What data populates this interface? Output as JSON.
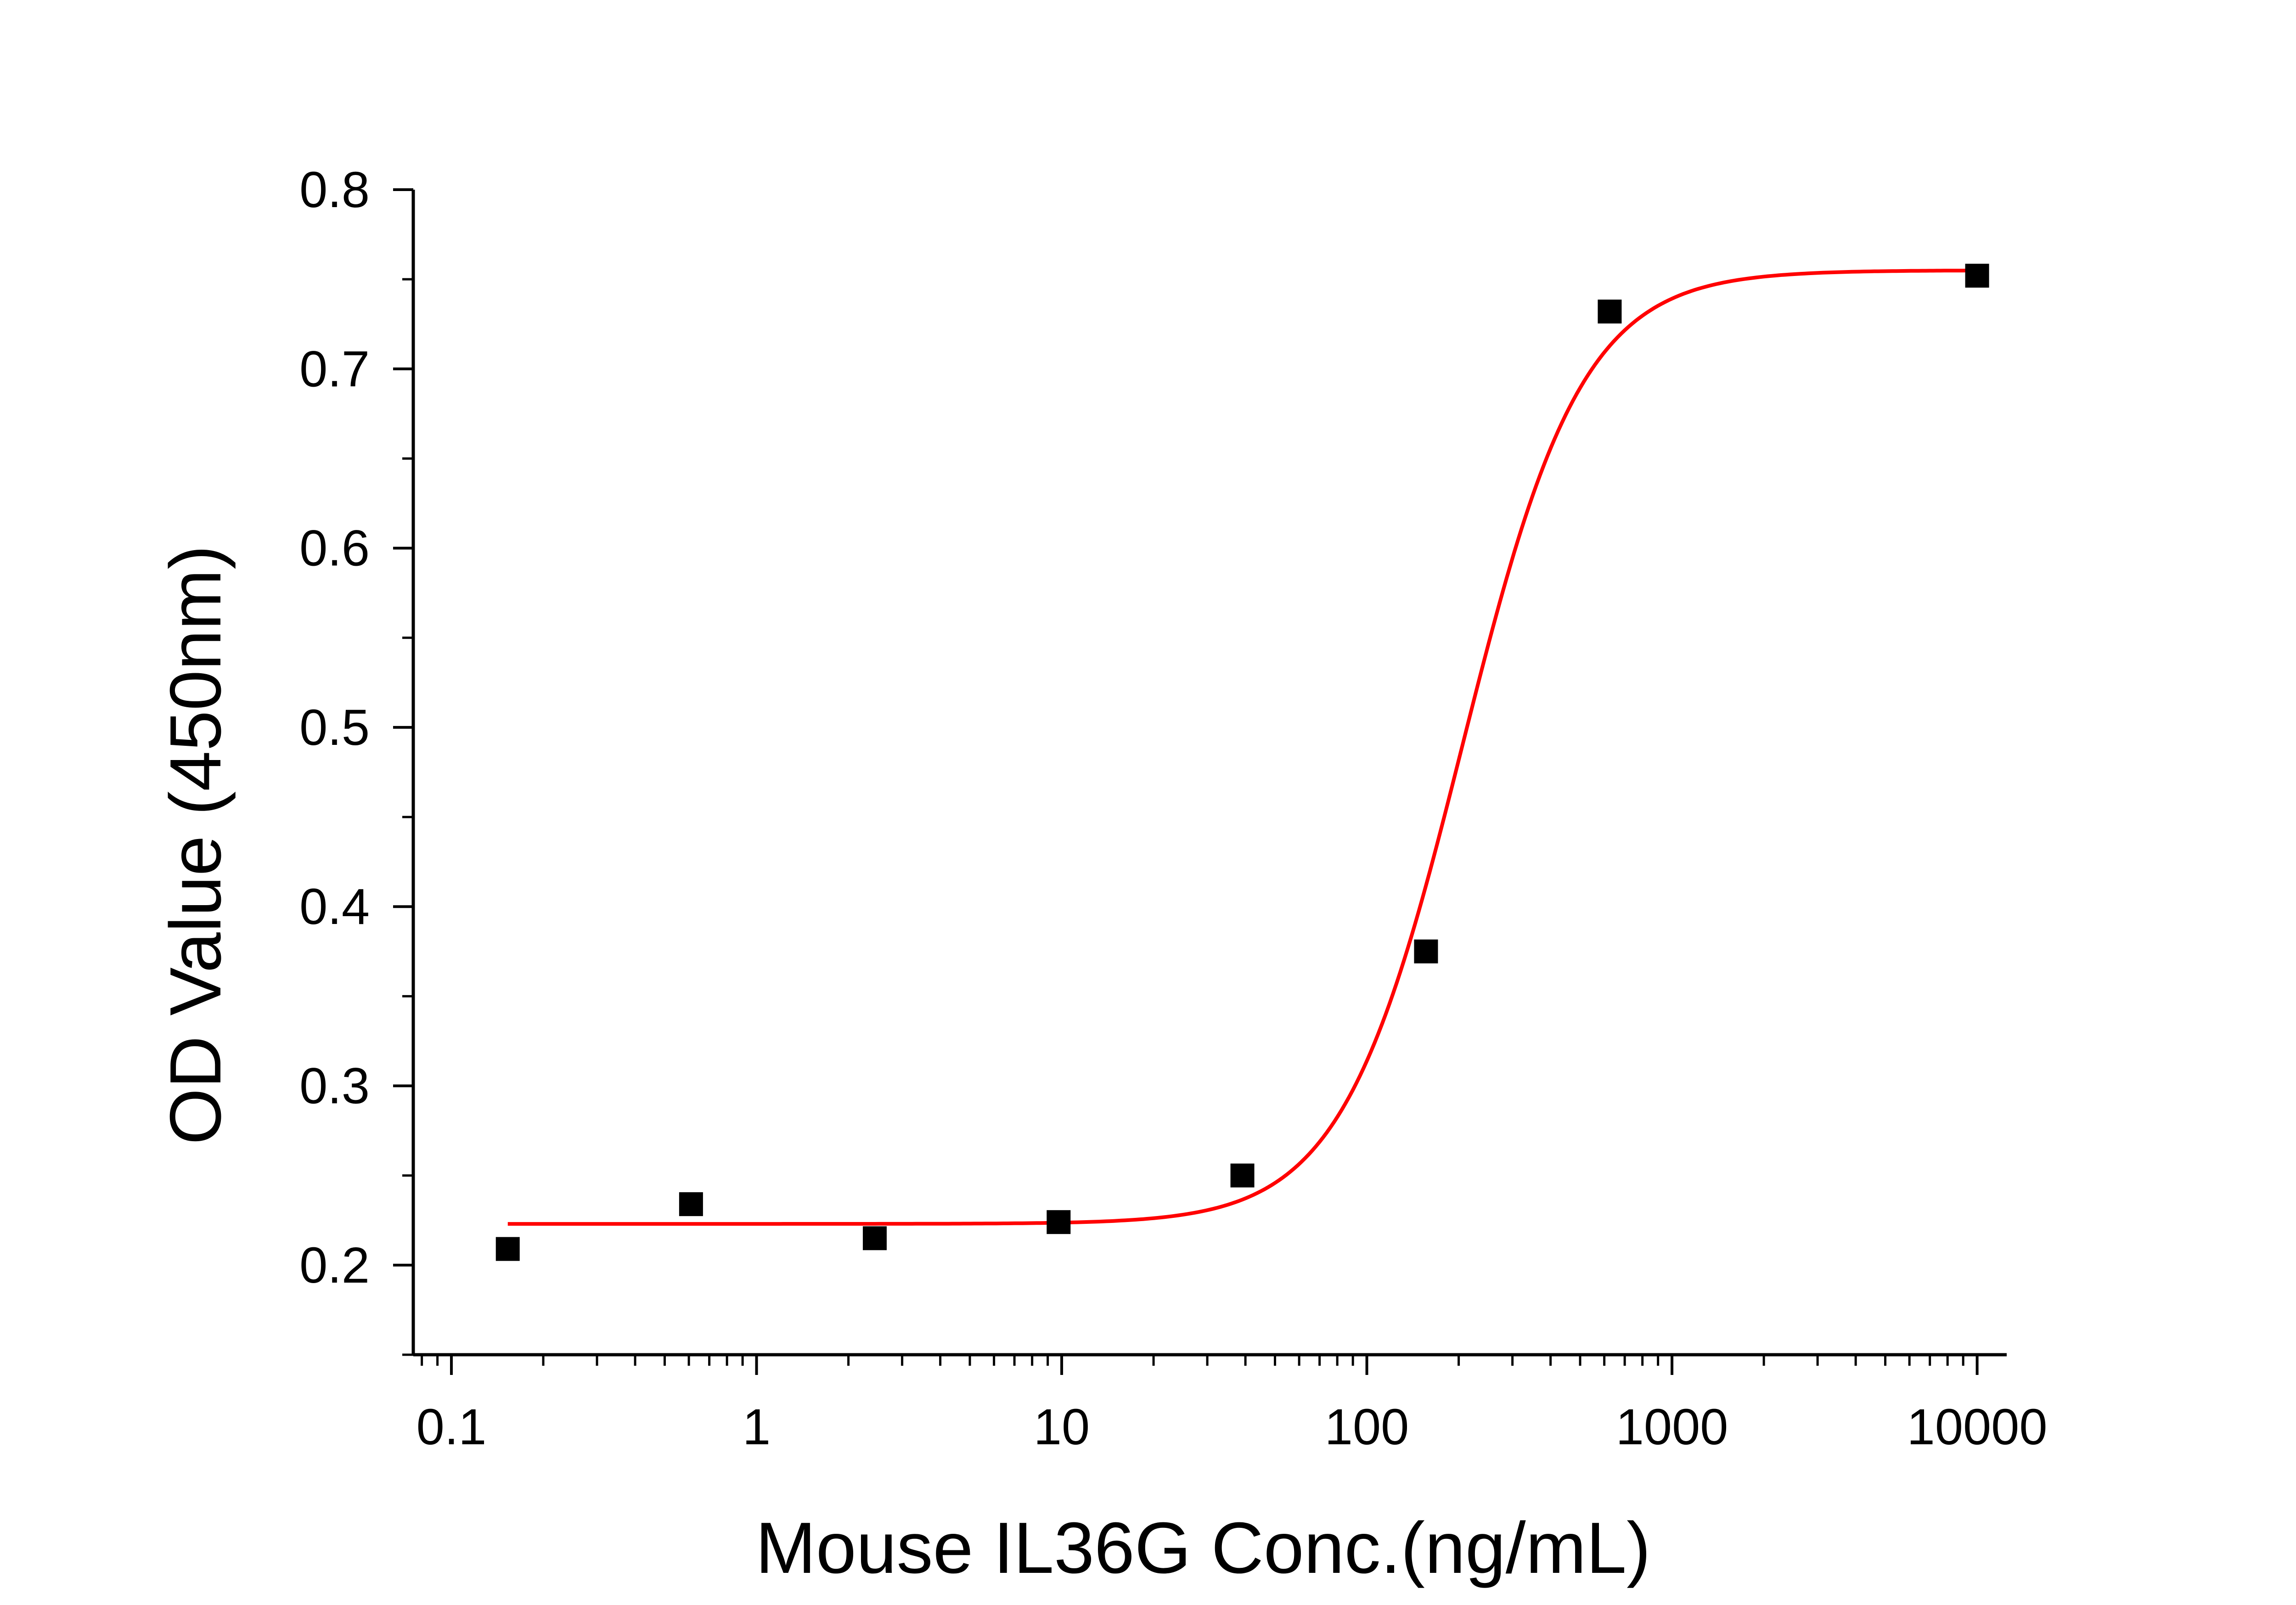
{
  "chart_data": {
    "type": "scatter",
    "xlabel": "Mouse IL36G Conc.(ng/mL)",
    "ylabel": "OD Value (450nm)",
    "x_scale": "log",
    "xlim": [
      0.075,
      12500
    ],
    "ylim": [
      0.15,
      0.8
    ],
    "x_ticks": [
      0.1,
      1,
      10,
      100,
      1000,
      10000
    ],
    "x_tick_labels": [
      "0.1",
      "1",
      "10",
      "100",
      "1000",
      "10000"
    ],
    "y_ticks": [
      0.2,
      0.3,
      0.4,
      0.5,
      0.6,
      0.7,
      0.8
    ],
    "y_tick_labels": [
      "0.2",
      "0.3",
      "0.4",
      "0.5",
      "0.6",
      "0.7",
      "0.8"
    ],
    "grid": false,
    "series": [
      {
        "kind": "points",
        "marker": "square",
        "color": "#000000",
        "x": [
          0.153,
          0.61,
          2.44,
          9.77,
          39.1,
          156.3,
          625,
          10000
        ],
        "y": [
          0.209,
          0.234,
          0.215,
          0.224,
          0.25,
          0.375,
          0.732,
          0.752
        ]
      },
      {
        "kind": "fit_curve",
        "color": "#ff0000",
        "model": "4PL",
        "bottom": 0.223,
        "top": 0.755,
        "ec50": 205,
        "hill": 2.2,
        "x_range": [
          0.153,
          10000
        ]
      }
    ]
  }
}
